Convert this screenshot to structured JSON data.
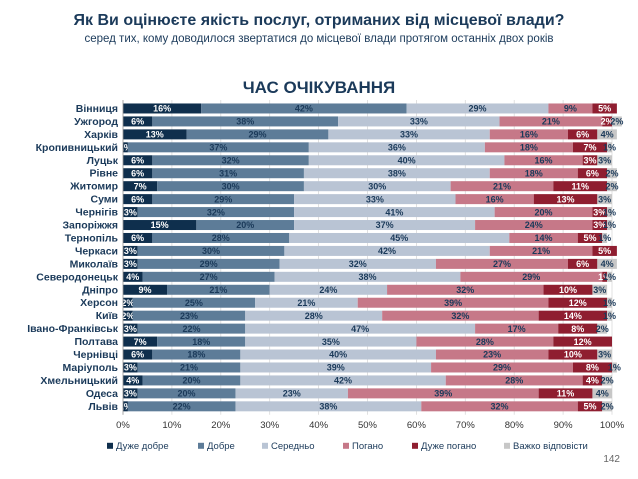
{
  "header": {
    "title": "Як Ви оцінюєте якість послуг, отриманих від місцевої влади?",
    "subtitle": "серед тих, кому доводилося звертатися до місцевої влади протягом останніх двох років",
    "page_number": "142"
  },
  "colors": {
    "very_good": "#0f2f4d",
    "good": "#5d7c98",
    "average": "#b9c4d4",
    "bad": "#c67888",
    "very_bad": "#8f1e30",
    "hard_to_say": "#c7c7c7"
  },
  "chart_data": {
    "type": "bar",
    "orientation": "horizontal-stacked-100",
    "title": "ЧАС ОЧІКУВАННЯ",
    "xlim": [
      0,
      100
    ],
    "x_ticks": [
      "0%",
      "10%",
      "20%",
      "30%",
      "40%",
      "50%",
      "60%",
      "70%",
      "80%",
      "90%",
      "100%"
    ],
    "legend_position": "bottom",
    "categories": [
      "Вінниця",
      "Ужгород",
      "Харків",
      "Кропивницький",
      "Луцьк",
      "Рівне",
      "Житомир",
      "Суми",
      "Чернігів",
      "Запоріжжя",
      "Тернопіль",
      "Черкаси",
      "Миколаїв",
      "Северодонецьк",
      "Дніпро",
      "Херсон",
      "Київ",
      "Івано-Франківськ",
      "Полтава",
      "Чернівці",
      "Маріуполь",
      "Хмельницький",
      "Одеса",
      "Львів"
    ],
    "series": [
      {
        "name": "Дуже добре",
        "color_key": "very_good",
        "values": [
          16,
          6,
          13,
          1,
          6,
          6,
          7,
          6,
          3,
          15,
          6,
          3,
          3,
          4,
          9,
          2,
          2,
          3,
          7,
          6,
          3,
          4,
          3,
          1
        ]
      },
      {
        "name": "Добре",
        "color_key": "good",
        "values": [
          42,
          38,
          29,
          37,
          32,
          31,
          30,
          29,
          32,
          20,
          28,
          30,
          29,
          27,
          21,
          25,
          23,
          22,
          18,
          18,
          21,
          20,
          20,
          22
        ]
      },
      {
        "name": "Середньо",
        "color_key": "average",
        "values": [
          29,
          33,
          33,
          36,
          40,
          38,
          30,
          33,
          41,
          37,
          45,
          42,
          32,
          38,
          24,
          21,
          28,
          47,
          35,
          40,
          39,
          42,
          23,
          38
        ]
      },
      {
        "name": "Погано",
        "color_key": "bad",
        "values": [
          9,
          21,
          16,
          18,
          16,
          18,
          21,
          16,
          20,
          24,
          14,
          21,
          27,
          29,
          32,
          39,
          32,
          17,
          28,
          23,
          29,
          28,
          39,
          32
        ]
      },
      {
        "name": "Дуже погано",
        "color_key": "very_bad",
        "values": [
          5,
          2,
          6,
          7,
          3,
          6,
          11,
          13,
          3,
          3,
          5,
          5,
          6,
          1,
          10,
          12,
          14,
          8,
          12,
          10,
          8,
          4,
          11,
          5
        ]
      },
      {
        "name": "Важко відповісти",
        "color_key": "hard_to_say",
        "values": [
          0,
          2,
          4,
          1,
          3,
          2,
          2,
          3,
          1,
          1,
          1,
          0,
          4,
          1,
          3,
          1,
          1,
          2,
          0,
          3,
          1,
          2,
          4,
          2
        ]
      }
    ]
  }
}
